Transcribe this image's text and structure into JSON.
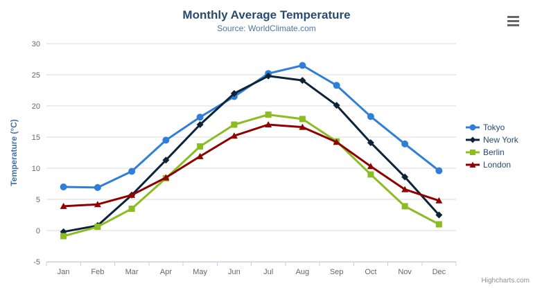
{
  "header": {
    "title": "Monthly Average Temperature",
    "subtitle": "Source: WorldClimate.com"
  },
  "chart_data": {
    "type": "line",
    "title": "Monthly Average Temperature",
    "subtitle": "Source: WorldClimate.com",
    "categories": [
      "Jan",
      "Feb",
      "Mar",
      "Apr",
      "May",
      "Jun",
      "Jul",
      "Aug",
      "Sep",
      "Oct",
      "Nov",
      "Dec"
    ],
    "series": [
      {
        "name": "Tokyo",
        "color": "#2f7ed8",
        "marker": "circle",
        "values": [
          7.0,
          6.9,
          9.5,
          14.5,
          18.2,
          21.5,
          25.2,
          26.5,
          23.3,
          18.3,
          13.9,
          9.6
        ]
      },
      {
        "name": "New York",
        "color": "#0d233a",
        "marker": "diamond",
        "values": [
          -0.2,
          0.8,
          5.7,
          11.3,
          17.0,
          22.0,
          24.8,
          24.1,
          20.1,
          14.1,
          8.6,
          2.5
        ]
      },
      {
        "name": "Berlin",
        "color": "#8bbc21",
        "marker": "square",
        "values": [
          -0.9,
          0.6,
          3.5,
          8.4,
          13.5,
          17.0,
          18.6,
          17.9,
          14.3,
          9.0,
          3.9,
          1.0
        ]
      },
      {
        "name": "London",
        "color": "#910000",
        "marker": "triangle",
        "values": [
          3.9,
          4.2,
          5.7,
          8.5,
          11.9,
          15.2,
          17.0,
          16.6,
          14.2,
          10.3,
          6.6,
          4.8
        ]
      }
    ],
    "xlabel": "",
    "ylabel": "Temperature (°C)",
    "ylim": [
      -5,
      30
    ],
    "ytick_step": 5,
    "grid": true,
    "legend_position": "right"
  },
  "credits": {
    "label": "Highcharts.com"
  },
  "colors": {
    "title": "#274b6d",
    "subtitle": "#4d759e",
    "axis_labels": "#666666",
    "axis_title": "#4572a7",
    "grid_line": "#d8d8d8",
    "axis_line": "#c0d0e0",
    "legend_text": "#274b6d",
    "credits_text": "#909090",
    "menu_icon": "#666666"
  }
}
